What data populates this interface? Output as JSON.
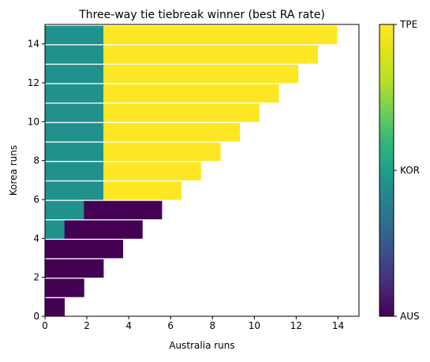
{
  "chart_data": {
    "type": "heatmap",
    "title": "Three-way tie tiebreak winner (best RA rate)",
    "xlabel": "Australia runs",
    "ylabel": "Korea runs",
    "xlim": [
      0,
      15
    ],
    "ylim": [
      0,
      15
    ],
    "x_ticks": [
      0,
      2,
      4,
      6,
      8,
      10,
      12,
      14
    ],
    "y_ticks": [
      0,
      2,
      4,
      6,
      8,
      10,
      12,
      14
    ],
    "grid": false,
    "colormap": "viridis",
    "colorbar": {
      "placement": "right",
      "ticks": [
        {
          "label": "AUS",
          "value": 0,
          "color": "#440154"
        },
        {
          "label": "KOR",
          "value": 1,
          "color": "#21918c"
        },
        {
          "label": "TPE",
          "value": 2,
          "color": "#fde725"
        }
      ]
    },
    "cell_width": 0.93,
    "winner_by_korea_runs": [
      {
        "korea_runs": 0,
        "cells": [
          {
            "from": 0.0,
            "to": 0.93,
            "winner": "AUS"
          }
        ]
      },
      {
        "korea_runs": 1,
        "cells": [
          {
            "from": 0.0,
            "to": 1.86,
            "winner": "AUS"
          }
        ]
      },
      {
        "korea_runs": 2,
        "cells": [
          {
            "from": 0.0,
            "to": 2.79,
            "winner": "AUS"
          }
        ]
      },
      {
        "korea_runs": 3,
        "cells": [
          {
            "from": 0.0,
            "to": 3.72,
            "winner": "AUS"
          }
        ]
      },
      {
        "korea_runs": 4,
        "cells": [
          {
            "from": 0.0,
            "to": 0.93,
            "winner": "KOR"
          },
          {
            "from": 0.93,
            "to": 4.65,
            "winner": "AUS"
          }
        ]
      },
      {
        "korea_runs": 5,
        "cells": [
          {
            "from": 0.0,
            "to": 1.86,
            "winner": "KOR"
          },
          {
            "from": 1.86,
            "to": 5.58,
            "winner": "AUS"
          }
        ]
      },
      {
        "korea_runs": 6,
        "cells": [
          {
            "from": 0.0,
            "to": 2.79,
            "winner": "KOR"
          },
          {
            "from": 2.79,
            "to": 6.51,
            "winner": "TPE"
          }
        ]
      },
      {
        "korea_runs": 7,
        "cells": [
          {
            "from": 0.0,
            "to": 2.79,
            "winner": "KOR"
          },
          {
            "from": 2.79,
            "to": 7.44,
            "winner": "TPE"
          }
        ]
      },
      {
        "korea_runs": 8,
        "cells": [
          {
            "from": 0.0,
            "to": 2.79,
            "winner": "KOR"
          },
          {
            "from": 2.79,
            "to": 8.37,
            "winner": "TPE"
          }
        ]
      },
      {
        "korea_runs": 9,
        "cells": [
          {
            "from": 0.0,
            "to": 2.79,
            "winner": "KOR"
          },
          {
            "from": 2.79,
            "to": 9.3,
            "winner": "TPE"
          }
        ]
      },
      {
        "korea_runs": 10,
        "cells": [
          {
            "from": 0.0,
            "to": 2.79,
            "winner": "KOR"
          },
          {
            "from": 2.79,
            "to": 10.23,
            "winner": "TPE"
          }
        ]
      },
      {
        "korea_runs": 11,
        "cells": [
          {
            "from": 0.0,
            "to": 2.79,
            "winner": "KOR"
          },
          {
            "from": 2.79,
            "to": 11.16,
            "winner": "TPE"
          }
        ]
      },
      {
        "korea_runs": 12,
        "cells": [
          {
            "from": 0.0,
            "to": 2.79,
            "winner": "KOR"
          },
          {
            "from": 2.79,
            "to": 12.09,
            "winner": "TPE"
          }
        ]
      },
      {
        "korea_runs": 13,
        "cells": [
          {
            "from": 0.0,
            "to": 2.79,
            "winner": "KOR"
          },
          {
            "from": 2.79,
            "to": 13.02,
            "winner": "TPE"
          }
        ]
      },
      {
        "korea_runs": 14,
        "cells": [
          {
            "from": 0.0,
            "to": 2.79,
            "winner": "KOR"
          },
          {
            "from": 2.79,
            "to": 13.95,
            "winner": "TPE"
          }
        ]
      }
    ]
  }
}
